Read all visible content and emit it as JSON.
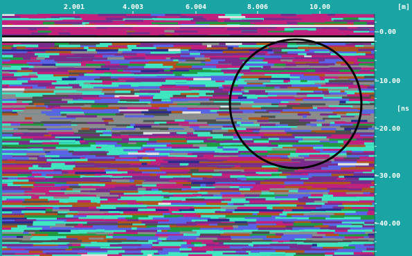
{
  "x_axis": {
    "ticks": [
      "2.001",
      "4.003",
      "6.004",
      "8.006",
      "10.00"
    ],
    "unit": "[m]"
  },
  "y_axis": {
    "ticks": [
      "0.00",
      "10.00",
      "20.00",
      "30.00",
      "40.00"
    ],
    "unit": "[ns"
  }
}
